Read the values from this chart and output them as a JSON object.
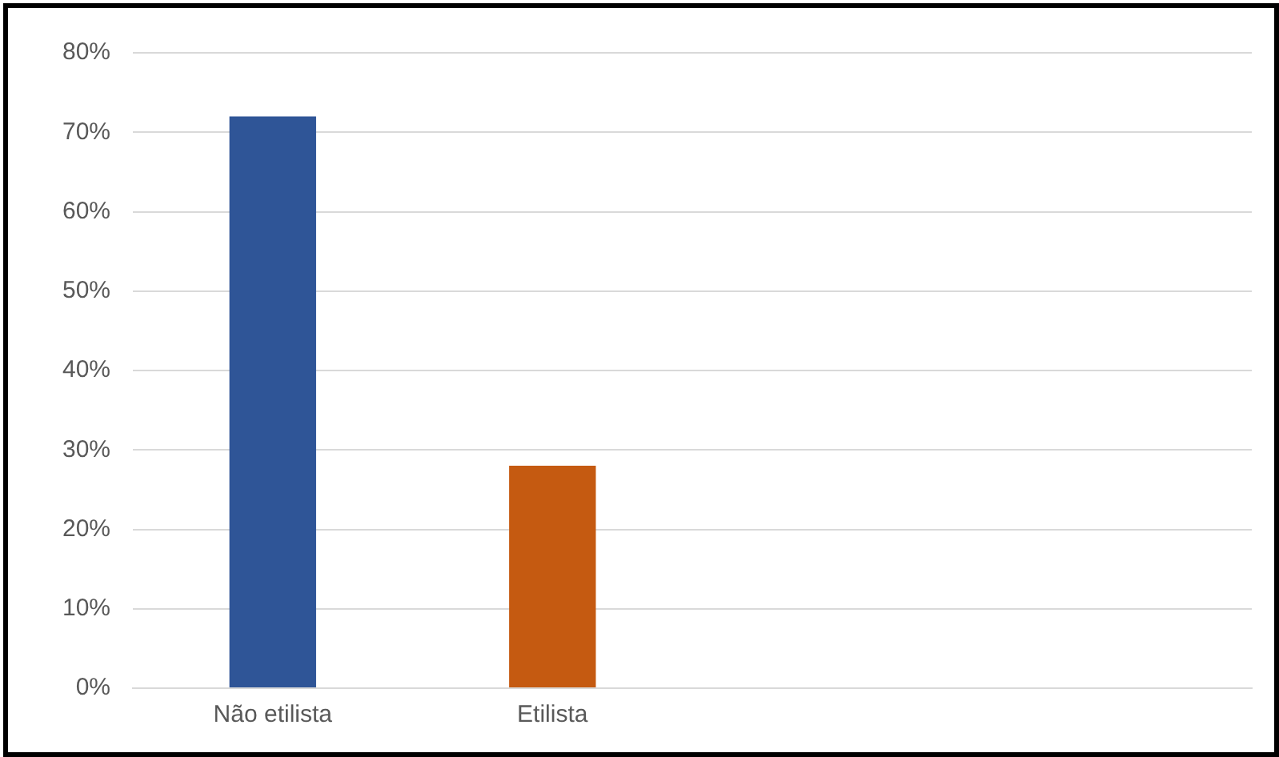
{
  "chart_data": {
    "type": "bar",
    "categories": [
      "Não etilista",
      "Etilista",
      null,
      null
    ],
    "values": [
      72,
      28,
      null,
      null
    ],
    "colors": [
      "#2f5597",
      "#c55a11",
      null,
      null
    ],
    "ylim": [
      0,
      80
    ],
    "yticks": [
      {
        "value": 0,
        "label": "0%"
      },
      {
        "value": 10,
        "label": "10%"
      },
      {
        "value": 20,
        "label": "20%"
      },
      {
        "value": 30,
        "label": "30%"
      },
      {
        "value": 40,
        "label": "40%"
      },
      {
        "value": 50,
        "label": "50%"
      },
      {
        "value": 60,
        "label": "60%"
      },
      {
        "value": 70,
        "label": "70%"
      },
      {
        "value": 80,
        "label": "80%"
      }
    ],
    "grid": "y",
    "legend": false
  }
}
